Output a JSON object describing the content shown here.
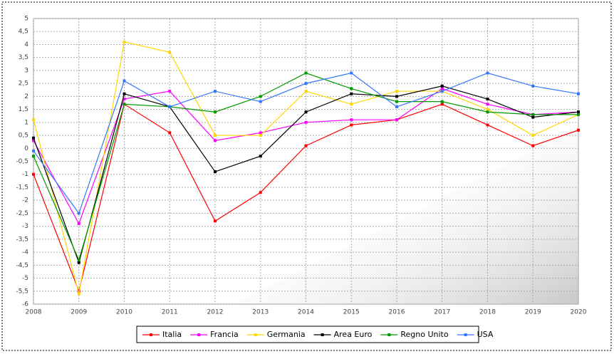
{
  "chart_data": {
    "type": "line",
    "categories": [
      "2008",
      "2009",
      "2010",
      "2011",
      "2012",
      "2013",
      "2014",
      "2015",
      "2016",
      "2017",
      "2018",
      "2019",
      "2020"
    ],
    "series": [
      {
        "name": "Italia",
        "color": "#ff0000",
        "values": [
          -1.0,
          -5.5,
          1.7,
          0.6,
          -2.8,
          -1.7,
          0.1,
          0.9,
          1.1,
          1.7,
          0.9,
          0.1,
          0.7
        ]
      },
      {
        "name": "Francia",
        "color": "#ff00ff",
        "values": [
          0.3,
          -2.9,
          1.9,
          2.2,
          0.3,
          0.6,
          1.0,
          1.1,
          1.1,
          2.3,
          1.7,
          1.3,
          1.4
        ]
      },
      {
        "name": "Germania",
        "color": "#ffd700",
        "values": [
          1.1,
          -5.6,
          4.1,
          3.7,
          0.5,
          0.5,
          2.2,
          1.7,
          2.2,
          2.2,
          1.5,
          0.5,
          1.3
        ]
      },
      {
        "name": "Area Euro",
        "color": "#000000",
        "values": [
          0.4,
          -4.4,
          2.1,
          1.6,
          -0.9,
          -0.3,
          1.4,
          2.1,
          2.0,
          2.4,
          1.9,
          1.2,
          1.4
        ]
      },
      {
        "name": "Regno Unito",
        "color": "#009900",
        "values": [
          -0.3,
          -4.3,
          1.7,
          1.6,
          1.4,
          2.0,
          2.9,
          2.3,
          1.8,
          1.8,
          1.4,
          1.3,
          1.3
        ]
      },
      {
        "name": "USA",
        "color": "#3377ff",
        "values": [
          -0.1,
          -2.5,
          2.6,
          1.6,
          2.2,
          1.8,
          2.5,
          2.9,
          1.6,
          2.2,
          2.9,
          2.4,
          2.1
        ]
      }
    ],
    "ylim": [
      -6,
      5
    ],
    "yticks": [
      5,
      {
        "value": 4.5,
        "label": "4,5"
      },
      4,
      {
        "value": 3.5,
        "label": "3,5"
      },
      3,
      {
        "value": 2.5,
        "label": "2,5"
      },
      2,
      {
        "value": 1.5,
        "label": "1,5"
      },
      1,
      {
        "value": 0.5,
        "label": "0,5"
      },
      0,
      {
        "value": -0.5,
        "label": "-0,5"
      },
      -1,
      {
        "value": -1.5,
        "label": "-1,5"
      },
      -2,
      {
        "value": -2.5,
        "label": "-2,5"
      },
      -3,
      {
        "value": -3.5,
        "label": "-3,5"
      },
      -4,
      {
        "value": -4.5,
        "label": "-4,5"
      },
      -5,
      {
        "value": -5.5,
        "label": "-5,5"
      },
      -6
    ],
    "grid": true
  }
}
